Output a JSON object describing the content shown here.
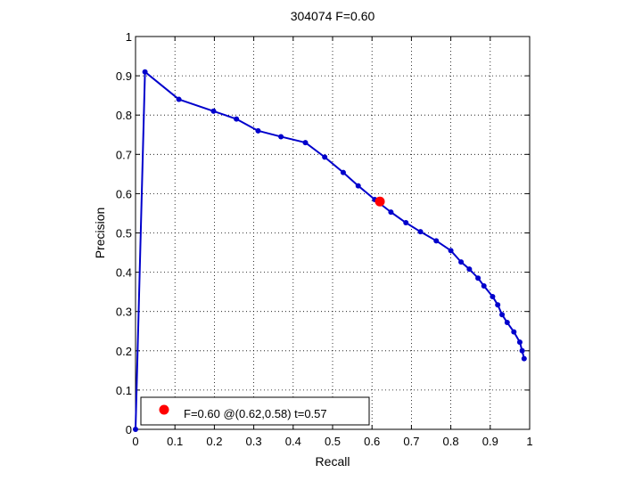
{
  "chart_data": {
    "type": "line",
    "title": "304074 F=0.60",
    "xlabel": "Recall",
    "ylabel": "Precision",
    "xlim": [
      0,
      1
    ],
    "ylim": [
      0,
      1
    ],
    "xticks": [
      "0",
      "0.1",
      "0.2",
      "0.3",
      "0.4",
      "0.5",
      "0.6",
      "0.7",
      "0.8",
      "0.9",
      "1"
    ],
    "yticks": [
      "0",
      "0.1",
      "0.2",
      "0.3",
      "0.4",
      "0.5",
      "0.6",
      "0.7",
      "0.8",
      "0.9",
      "1"
    ],
    "grid": true,
    "legend_position": "bottom-left",
    "series": [
      {
        "color": "#0000cc",
        "x": [
          0.0,
          0.024,
          0.11,
          0.198,
          0.256,
          0.311,
          0.369,
          0.431,
          0.48,
          0.527,
          0.565,
          0.607,
          0.648,
          0.686,
          0.723,
          0.763,
          0.8,
          0.826,
          0.847,
          0.869,
          0.884,
          0.906,
          0.919,
          0.93,
          0.943,
          0.96,
          0.975,
          0.981,
          0.986
        ],
        "y": [
          0.0,
          0.91,
          0.84,
          0.81,
          0.79,
          0.76,
          0.745,
          0.73,
          0.693,
          0.654,
          0.62,
          0.585,
          0.553,
          0.526,
          0.503,
          0.48,
          0.455,
          0.426,
          0.408,
          0.385,
          0.365,
          0.338,
          0.317,
          0.292,
          0.272,
          0.248,
          0.222,
          0.2,
          0.18
        ]
      }
    ],
    "highlight_point": {
      "x": 0.62,
      "y": 0.58,
      "color": "#ff0000"
    },
    "legend": {
      "label": "F=0.60 @(0.62,0.58) t=0.57",
      "marker_color": "#ff0000"
    }
  }
}
